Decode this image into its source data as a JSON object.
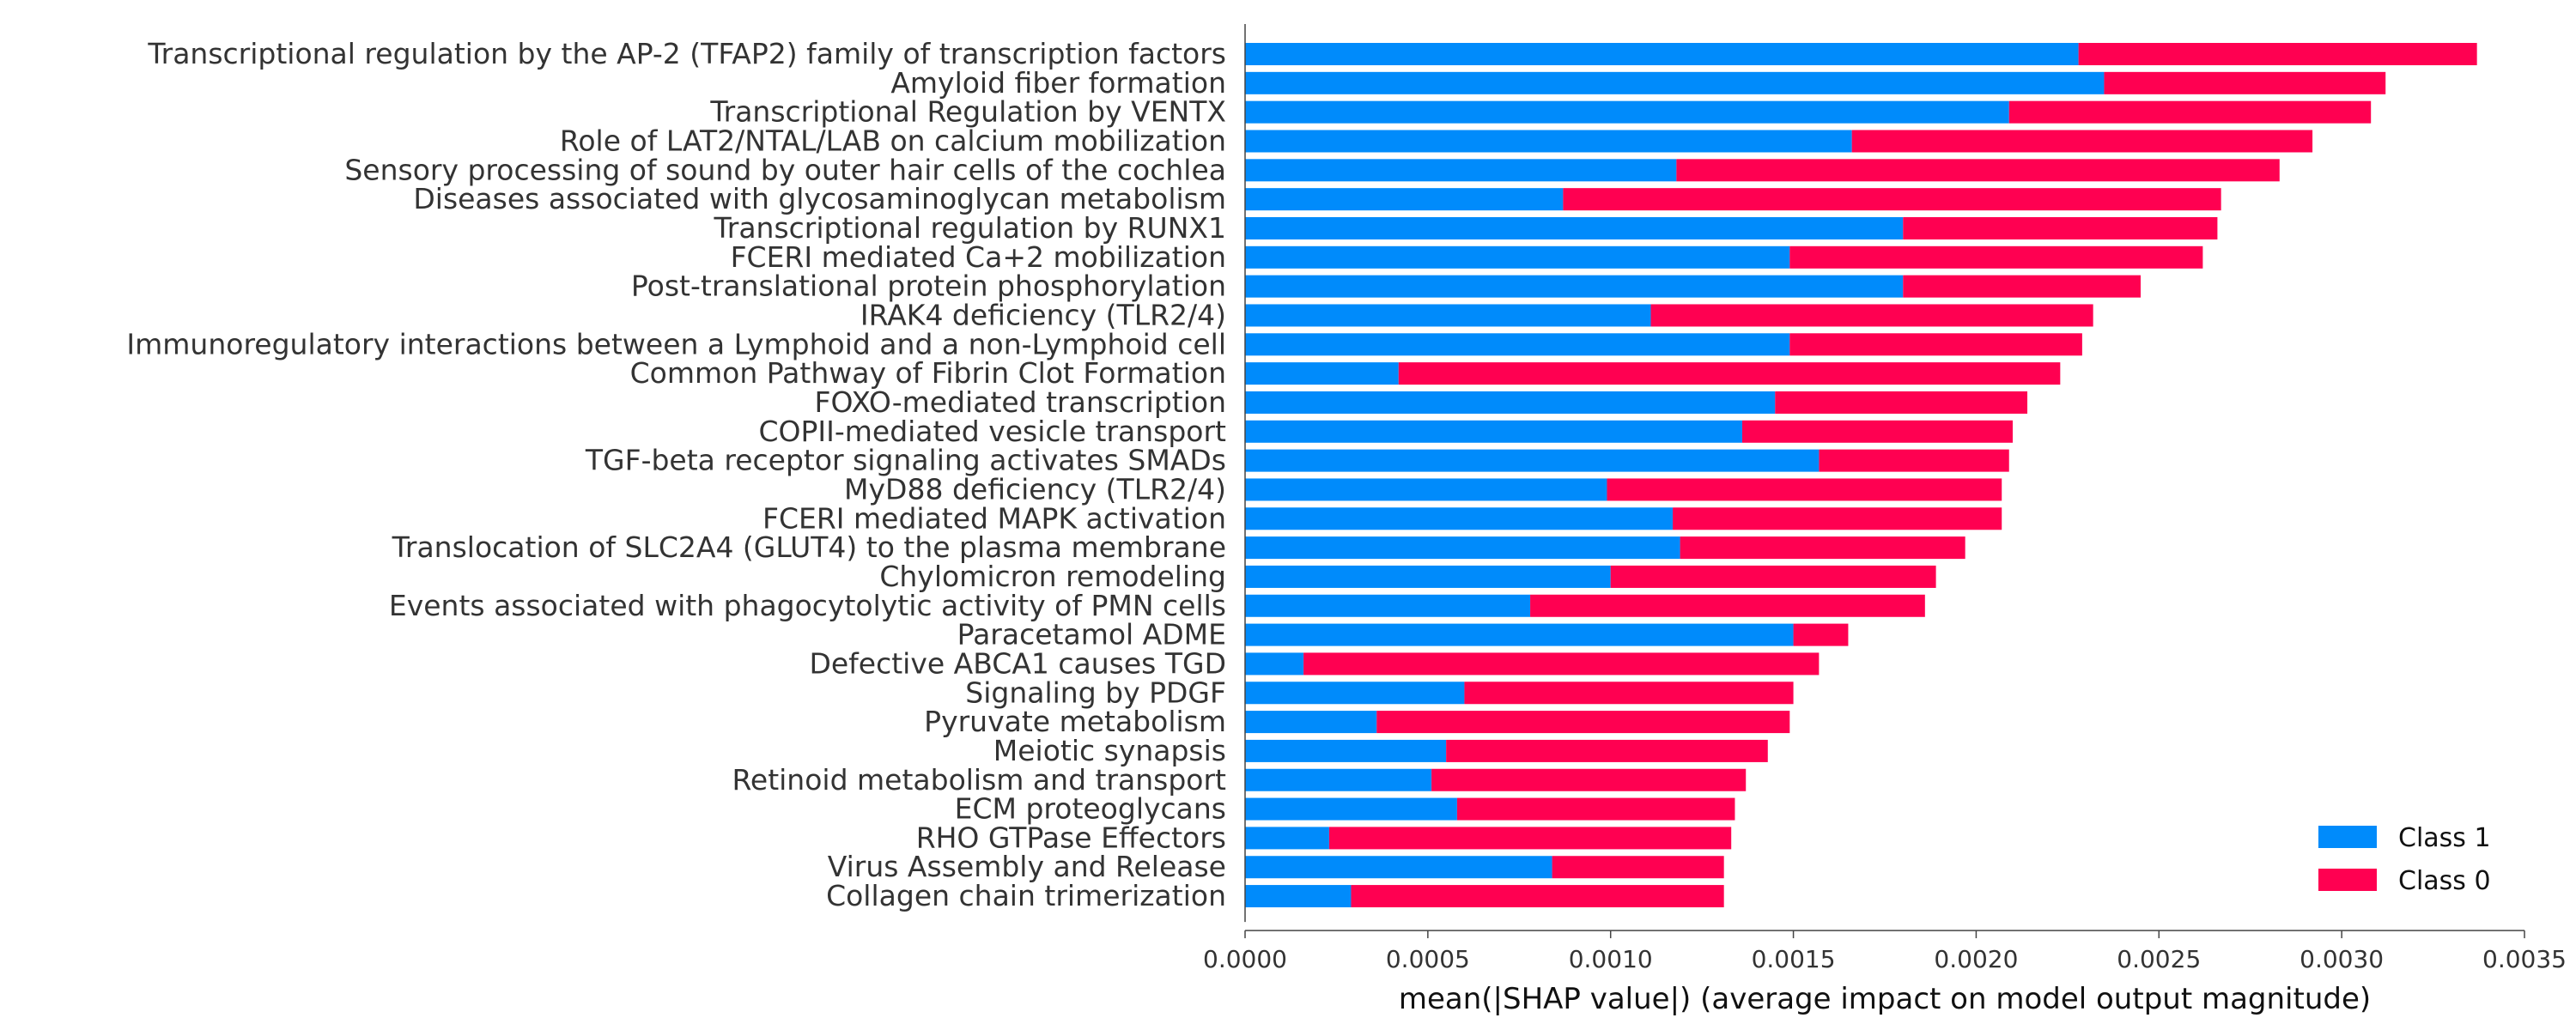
{
  "chart_data": {
    "type": "bar",
    "orientation": "horizontal",
    "stacked": true,
    "title": "",
    "xlabel": "mean(|SHAP value|) (average impact on model output magnitude)",
    "ylabel": "",
    "xlim": [
      0,
      0.0035
    ],
    "xticks": [
      0.0,
      0.0005,
      0.001,
      0.0015,
      0.002,
      0.0025,
      0.003,
      0.0035
    ],
    "xtick_labels": [
      "0.0000",
      "0.0005",
      "0.0010",
      "0.0015",
      "0.0020",
      "0.0025",
      "0.0030",
      "0.0035"
    ],
    "grid": false,
    "legend_position": "bottom-right",
    "categories": [
      "Transcriptional regulation by the AP-2 (TFAP2) family of transcription factors",
      "Amyloid fiber formation",
      "Transcriptional Regulation by VENTX",
      "Role of LAT2/NTAL/LAB on calcium mobilization",
      "Sensory processing of sound by outer hair cells of the cochlea",
      "Diseases associated with glycosaminoglycan metabolism",
      "Transcriptional regulation by RUNX1",
      "FCERI mediated Ca+2 mobilization",
      "Post-translational protein phosphorylation",
      "IRAK4 deficiency (TLR2/4)",
      "Immunoregulatory interactions between a Lymphoid and a non-Lymphoid cell",
      "Common Pathway of Fibrin Clot Formation",
      "FOXO-mediated transcription",
      "COPII-mediated vesicle transport",
      "TGF-beta receptor signaling activates SMADs",
      "MyD88 deficiency (TLR2/4)",
      "FCERI mediated MAPK activation",
      "Translocation of SLC2A4 (GLUT4) to the plasma membrane",
      "Chylomicron remodeling",
      "Events associated with phagocytolytic activity of PMN cells",
      "Paracetamol ADME",
      "Defective ABCA1 causes TGD",
      "Signaling by PDGF",
      "Pyruvate metabolism",
      "Meiotic synapsis",
      "Retinoid metabolism and transport",
      "ECM proteoglycans",
      "RHO GTPase Effectors",
      "Virus Assembly and Release",
      "Collagen chain trimerization"
    ],
    "series": [
      {
        "name": "Class 1",
        "color": "#008bfb",
        "values": [
          0.00228,
          0.00235,
          0.00209,
          0.00166,
          0.00118,
          0.00087,
          0.0018,
          0.00149,
          0.0018,
          0.00111,
          0.00149,
          0.00042,
          0.00145,
          0.00136,
          0.00157,
          0.00099,
          0.00117,
          0.00119,
          0.001,
          0.00078,
          0.0015,
          0.00016,
          0.0006,
          0.00036,
          0.00055,
          0.00051,
          0.00058,
          0.00023,
          0.00084,
          0.00029
        ]
      },
      {
        "name": "Class 0",
        "color": "#ff0051",
        "values": [
          0.00109,
          0.00077,
          0.00099,
          0.00126,
          0.00165,
          0.0018,
          0.00086,
          0.00113,
          0.00065,
          0.00121,
          0.0008,
          0.00181,
          0.00069,
          0.00074,
          0.00052,
          0.00108,
          0.0009,
          0.00078,
          0.00089,
          0.00108,
          0.00015,
          0.00141,
          0.0009,
          0.00113,
          0.00088,
          0.00086,
          0.00076,
          0.0011,
          0.00047,
          0.00102
        ]
      }
    ]
  },
  "legend": [
    {
      "label": "Class 1",
      "color": "#008bfb"
    },
    {
      "label": "Class 0",
      "color": "#ff0051"
    }
  ]
}
